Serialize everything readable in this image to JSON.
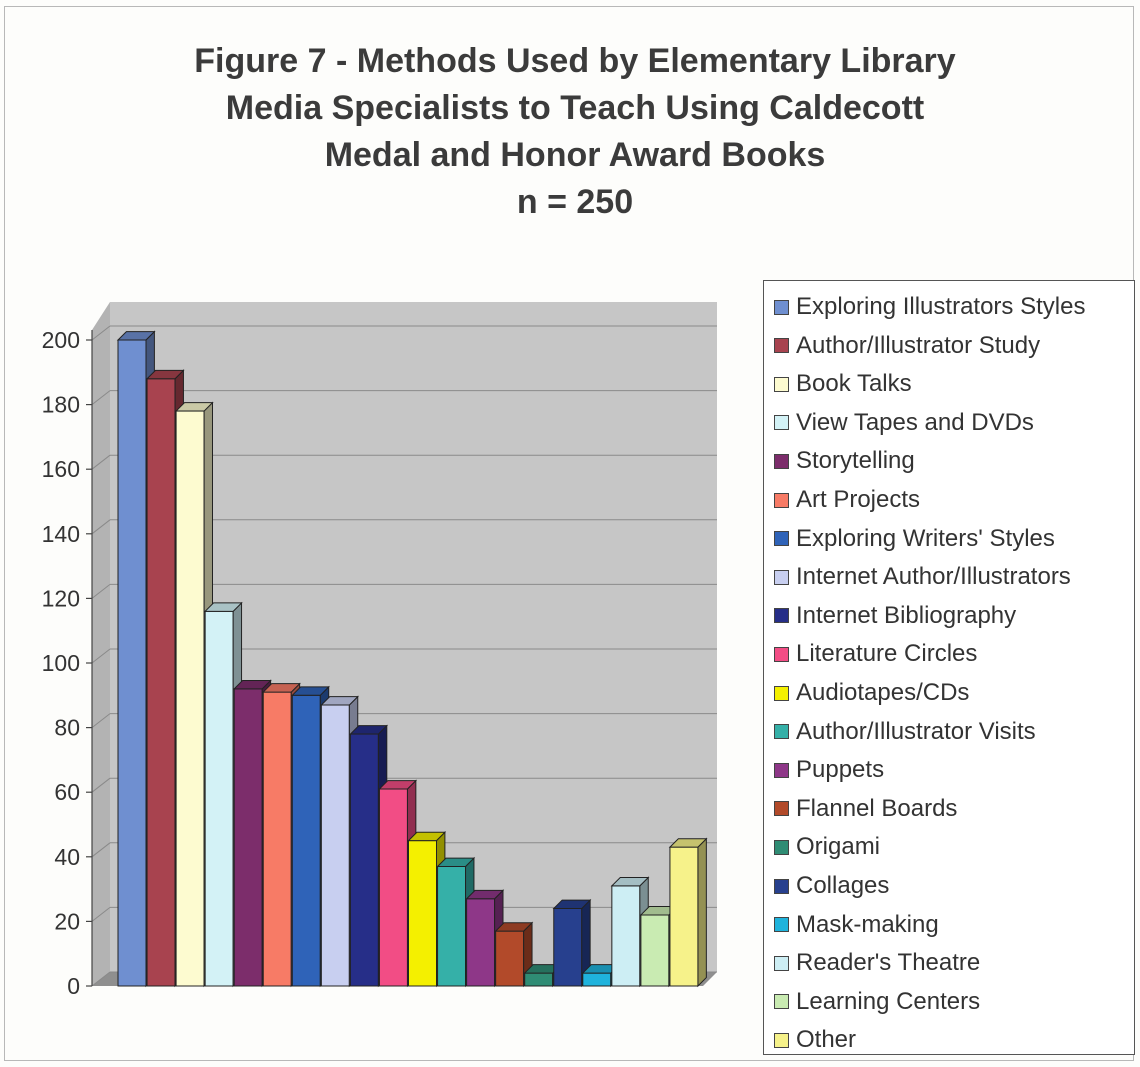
{
  "chart_data": {
    "type": "bar",
    "title_lines": [
      "Figure 7 - Methods Used by Elementary Library",
      "Media Specialists to Teach Using Caldecott",
      "Medal and Honor Award Books",
      "n = 250"
    ],
    "xlabel": "",
    "ylabel": "",
    "ylim": [
      0,
      200
    ],
    "yticks": [
      "0",
      "20",
      "40",
      "60",
      "80",
      "100",
      "120",
      "140",
      "160",
      "180",
      "200"
    ],
    "grid": true,
    "legend_position": "right",
    "categories": [
      "Exploring Illustrators Styles",
      "Author/Illustrator Study",
      "Book Talks",
      "View Tapes and DVDs",
      "Storytelling",
      "Art Projects",
      "Exploring Writers' Styles",
      "Internet Author/Illustrators",
      "Internet Bibliography",
      "Literature Circles",
      "Audiotapes/CDs",
      "Author/Illustrator Visits",
      "Puppets",
      "Flannel Boards",
      "Origami",
      "Collages",
      "Mask-making",
      "Reader's Theatre",
      "Learning Centers",
      "Other"
    ],
    "values": [
      200,
      188,
      178,
      116,
      92,
      91,
      90,
      87,
      78,
      61,
      45,
      37,
      27,
      17,
      4,
      24,
      4,
      31,
      22,
      43
    ],
    "colors": [
      "#6f8fd0",
      "#a8434f",
      "#fdfbd0",
      "#d3f2f6",
      "#7c2d6b",
      "#f77b66",
      "#2f63b8",
      "#c8cff0",
      "#262e88",
      "#f24d85",
      "#f4f000",
      "#35b0a8",
      "#8e3788",
      "#b24a2a",
      "#2f8c74",
      "#27408e",
      "#1fb3dc",
      "#cdeef4",
      "#c9ebb2",
      "#f6f28a"
    ]
  }
}
